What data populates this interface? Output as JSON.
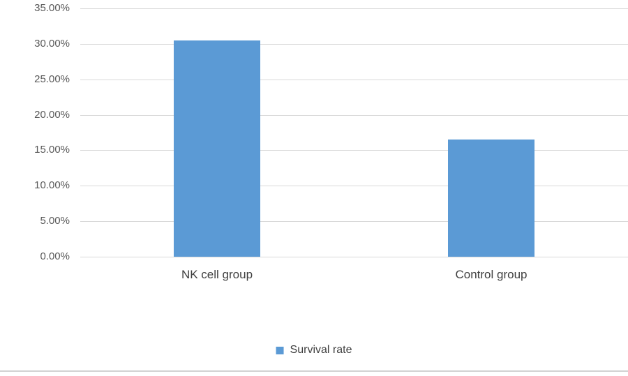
{
  "chart_data": {
    "type": "bar",
    "title": "",
    "xlabel": "",
    "ylabel": "",
    "categories": [
      "NK cell group",
      "Control group"
    ],
    "series": [
      {
        "name": "Survival rate",
        "values": [
          30.5,
          16.5
        ]
      }
    ],
    "unit": "%",
    "ylim": [
      0,
      35
    ],
    "yticks": [
      {
        "value": 0,
        "label": "0.00%"
      },
      {
        "value": 5,
        "label": "5.00%"
      },
      {
        "value": 10,
        "label": "10.00%"
      },
      {
        "value": 15,
        "label": "15.00%"
      },
      {
        "value": 20,
        "label": "20.00%"
      },
      {
        "value": 25,
        "label": "25.00%"
      },
      {
        "value": 30,
        "label": "30.00%"
      },
      {
        "value": 35,
        "label": "35.00%"
      }
    ],
    "grid": true,
    "legend_position": "bottom-center"
  },
  "legend": {
    "label": "Survival rate"
  },
  "colors": {
    "bar": "#5b9ad5",
    "gridline": "#d8d8d8",
    "axis_text": "#595959",
    "category_text": "#3f3f3f",
    "legend_text": "#404040",
    "divider": "#d2d2d2"
  }
}
